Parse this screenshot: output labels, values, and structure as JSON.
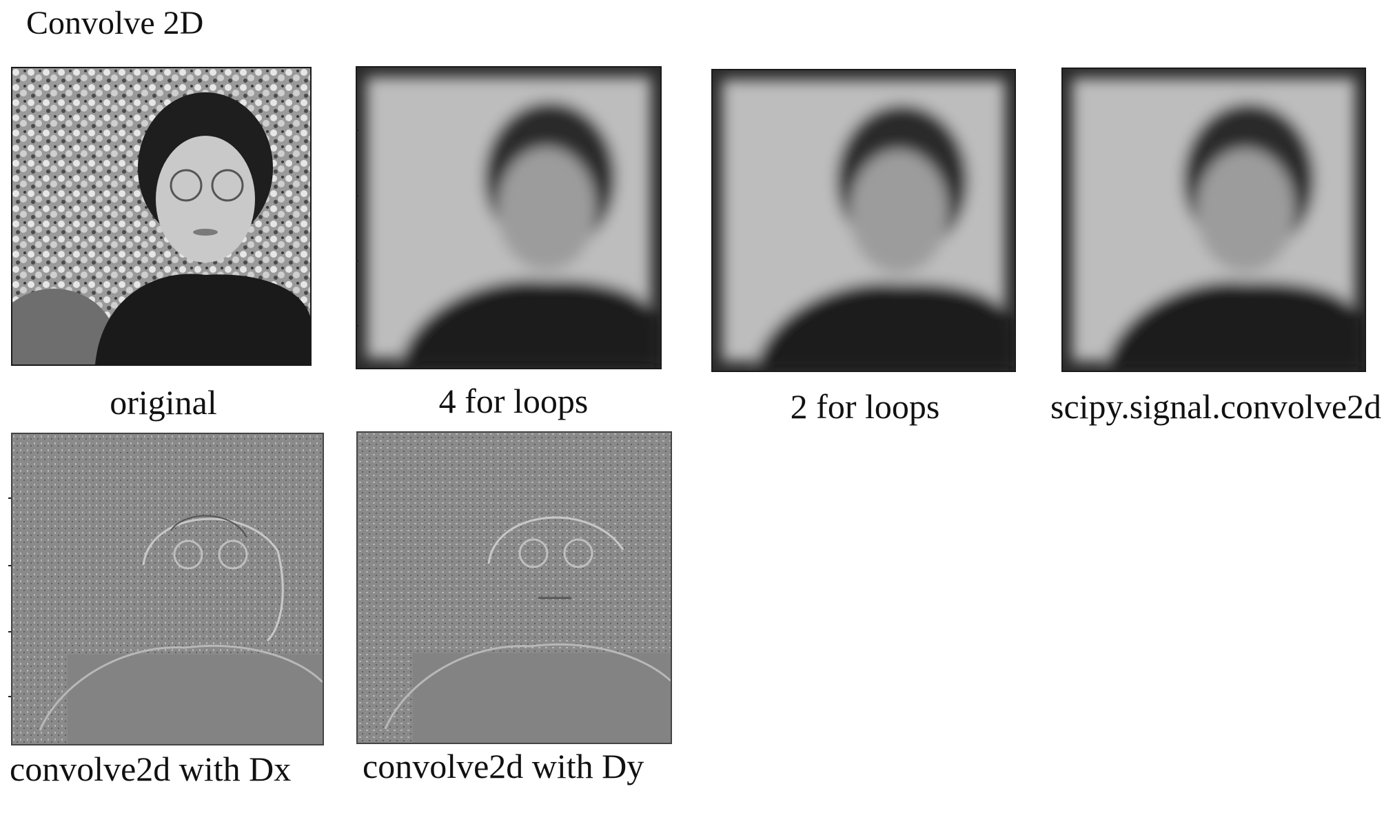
{
  "title": "Convolve 2D",
  "panels": [
    {
      "caption": "original",
      "style": "photo"
    },
    {
      "caption": "4 for loops",
      "style": "blur"
    },
    {
      "caption": "2 for loops",
      "style": "blur"
    },
    {
      "caption": "scipy.signal.convolve2d",
      "style": "blur"
    },
    {
      "caption": "convolve2d with Dx",
      "style": "emboss-x"
    },
    {
      "caption": "convolve2d with Dy",
      "style": "emboss-y"
    }
  ],
  "colors": {
    "background": "#ffffff",
    "text": "#111111",
    "emboss_gray": "#8a8a8a",
    "dark": "#1c1c1c"
  }
}
